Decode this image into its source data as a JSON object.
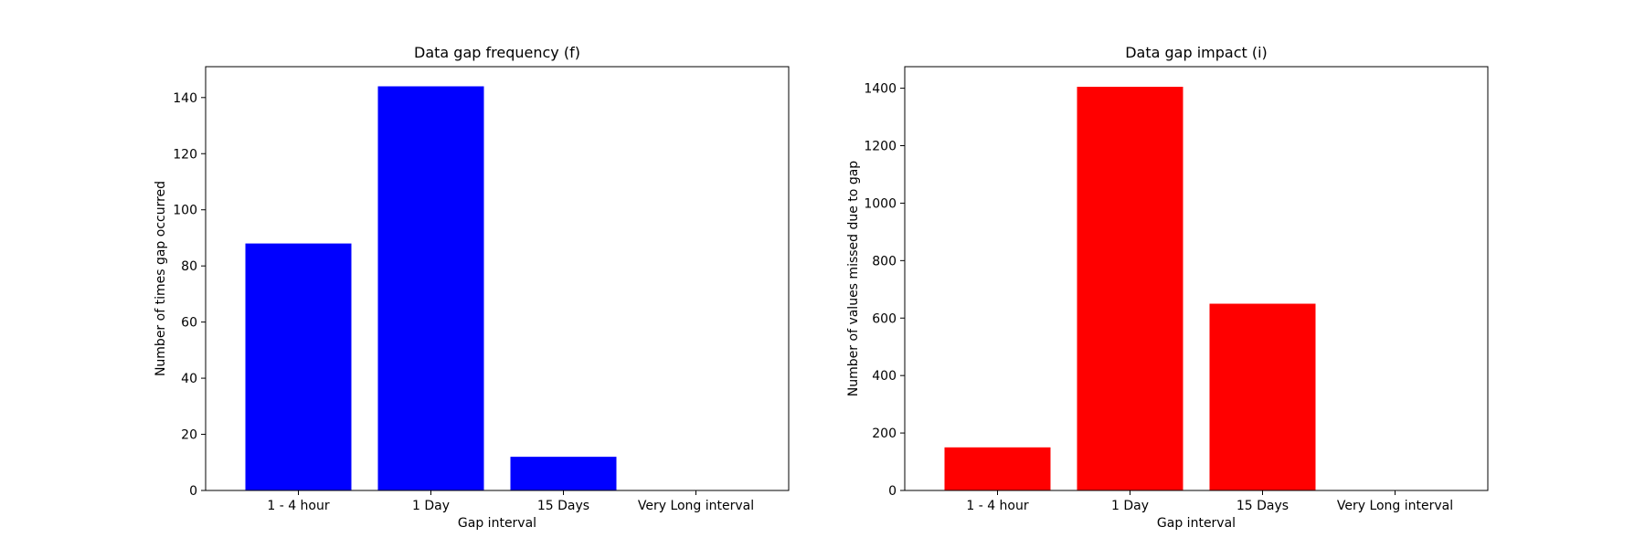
{
  "chart_data": [
    {
      "type": "bar",
      "title": "Data gap frequency (f)",
      "xlabel": "Gap interval",
      "ylabel": "Number of times gap occurred",
      "categories": [
        "1 - 4 hour",
        "1 Day",
        "15 Days",
        "Very Long interval"
      ],
      "values": [
        88,
        144,
        12,
        0
      ],
      "ylim": [
        0,
        151
      ],
      "yticks": [
        0,
        20,
        40,
        60,
        80,
        100,
        120,
        140
      ],
      "color": "#0000ff",
      "grid": false
    },
    {
      "type": "bar",
      "title": "Data gap impact (i)",
      "xlabel": "Gap interval",
      "ylabel": "Number of values missed due to gap",
      "categories": [
        "1 - 4 hour",
        "1 Day",
        "15 Days",
        "Very Long interval"
      ],
      "values": [
        150,
        1405,
        650,
        0
      ],
      "ylim": [
        0,
        1475
      ],
      "yticks": [
        0,
        200,
        400,
        600,
        800,
        1000,
        1200,
        1400
      ],
      "color": "#ff0000",
      "grid": false
    }
  ]
}
